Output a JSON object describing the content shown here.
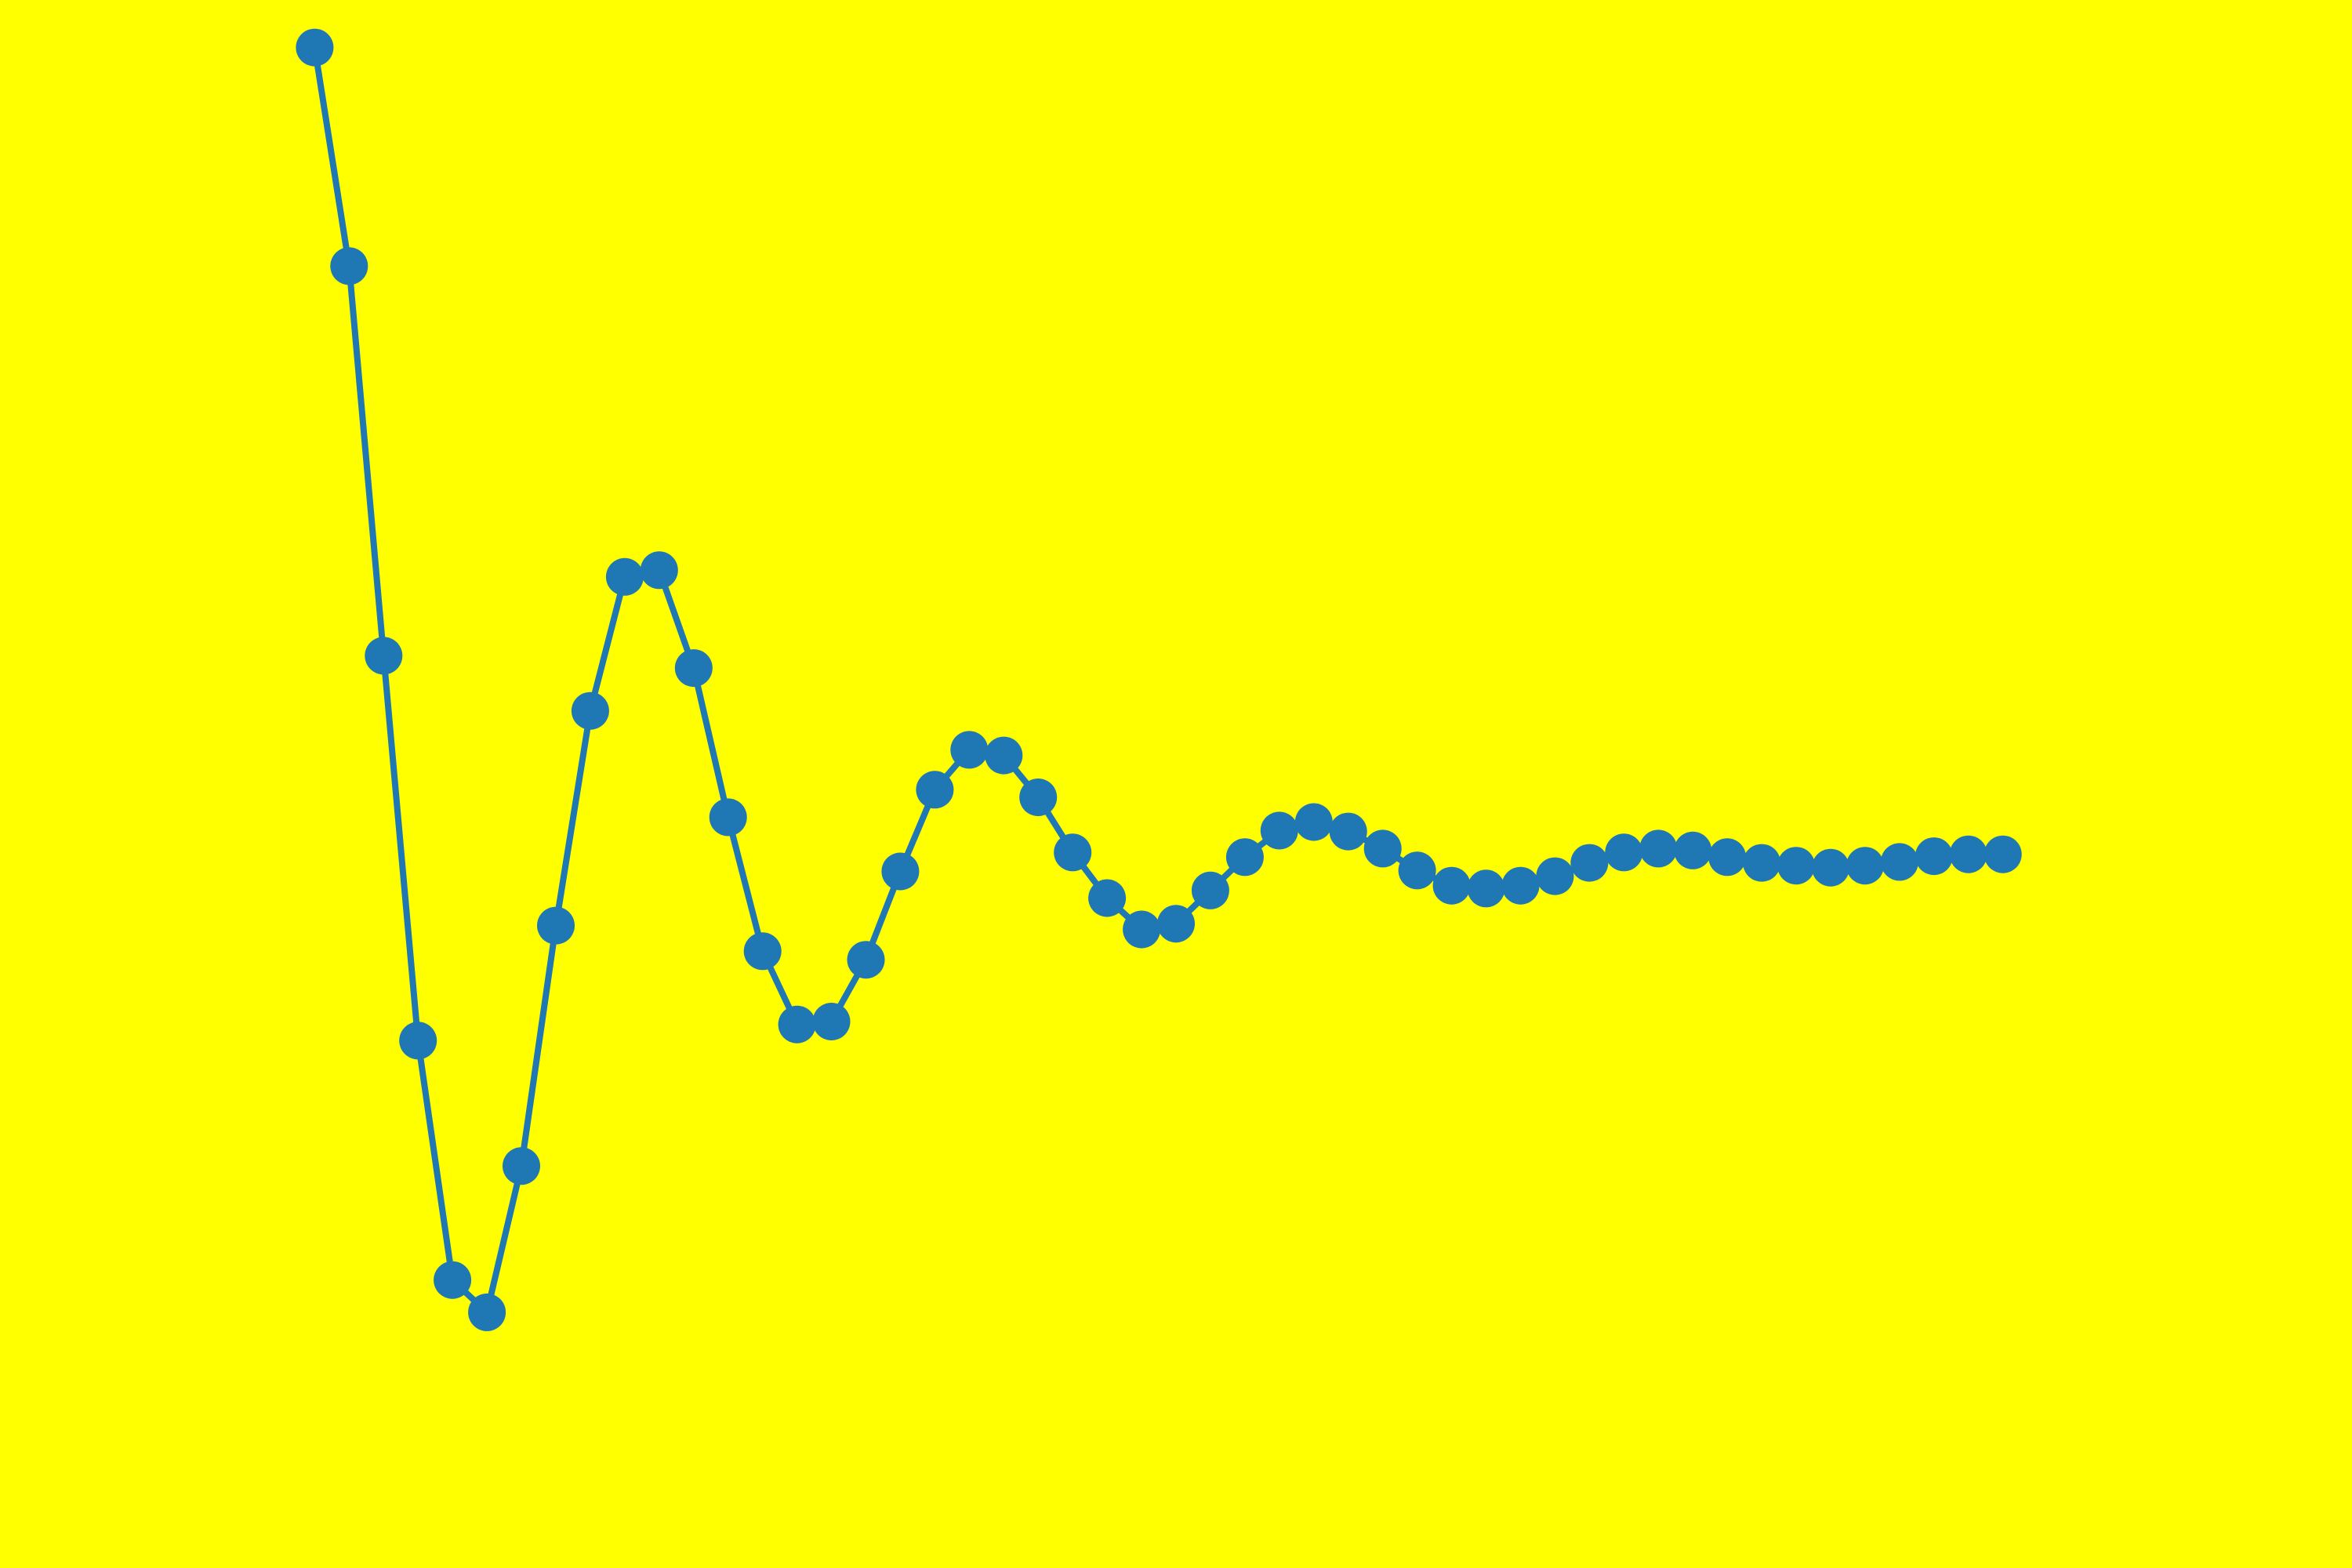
{
  "chart_data": {
    "type": "line",
    "background_color": "#ffff00",
    "series_color": "#1f77b4",
    "axes_visible": false,
    "grid": false,
    "legend": "none",
    "title": "",
    "xlabel": "",
    "ylabel": "",
    "xlim": [
      -0.6,
      50.6
    ],
    "ylim": [
      -0.6,
      1.05
    ],
    "x": [
      0,
      1,
      2,
      3,
      4,
      5,
      6,
      7,
      8,
      9,
      10,
      11,
      12,
      13,
      14,
      15,
      16,
      17,
      18,
      19,
      20,
      21,
      22,
      23,
      24,
      25,
      26,
      27,
      28,
      29,
      30,
      31,
      32,
      33,
      34,
      35,
      36,
      37,
      38,
      39,
      40,
      41,
      42,
      43,
      44,
      45,
      46,
      47,
      48,
      49
    ],
    "series": [
      {
        "values": [
          1.0,
          0.77,
          0.36,
          -0.045,
          -0.297,
          -0.331,
          -0.177,
          0.076,
          0.302,
          0.443,
          0.45,
          0.347,
          0.19,
          0.049,
          -0.028,
          -0.025,
          0.04,
          0.133,
          0.219,
          0.261,
          0.255,
          0.211,
          0.153,
          0.105,
          0.072,
          0.078,
          0.113,
          0.148,
          0.176,
          0.185,
          0.175,
          0.157,
          0.134,
          0.118,
          0.115,
          0.118,
          0.128,
          0.142,
          0.153,
          0.157,
          0.155,
          0.148,
          0.142,
          0.139,
          0.137,
          0.139,
          0.143,
          0.149,
          0.151,
          0.151
        ]
      }
    ]
  }
}
